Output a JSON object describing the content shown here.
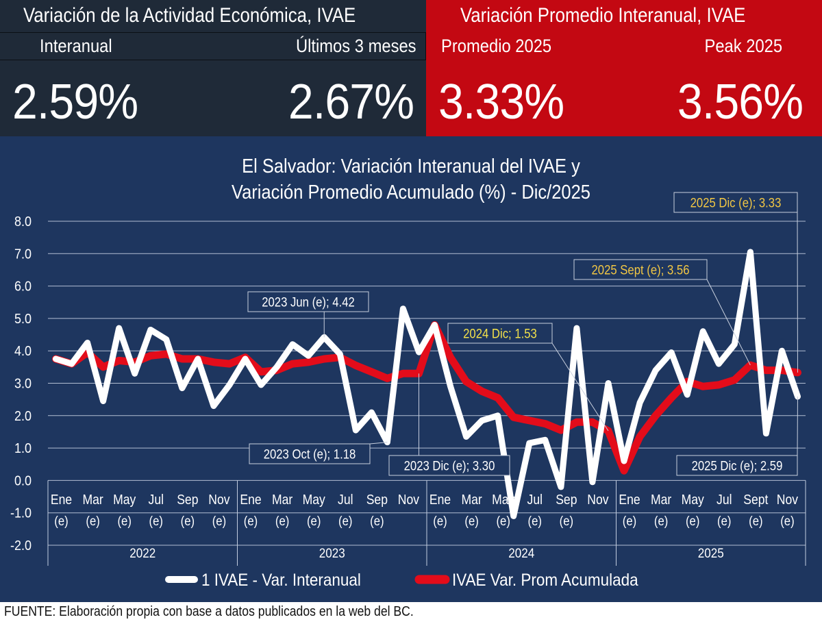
{
  "header": {
    "left_title": "Variación de la Actividad Económica, IVAE",
    "right_title": "Variación Promedio Interanual, IVAE",
    "kpis": [
      {
        "label": "Interanual",
        "value": "2.59%"
      },
      {
        "label": "Últimos 3 meses",
        "value": "2.67%"
      },
      {
        "label": "Promedio 2025",
        "value": "3.33%"
      },
      {
        "label": "Peak 2025",
        "value": "3.56%"
      }
    ]
  },
  "colors": {
    "dark_panel": "#1f2a38",
    "red_panel": "#c30812",
    "chart_background": "#1e365f",
    "series_interanual": "#ffffff",
    "series_promedio": "#e30c1a",
    "annotation_text_yellow": "#f2c744"
  },
  "chart_data": {
    "type": "line",
    "title": "El Salvador: Variación Interanual del IVAE y",
    "subtitle": "Variación Promedio Acumulado (%) - Dic/2025",
    "ylim": [
      -2.0,
      8.0
    ],
    "yticks": [
      "8.0",
      "7.0",
      "6.0",
      "5.0",
      "4.0",
      "3.0",
      "2.0",
      "1.0",
      "0.0",
      "-1.0",
      "-2.0"
    ],
    "grid": true,
    "legend_position": "bottom",
    "years": [
      "2022",
      "2023",
      "2024",
      "2025"
    ],
    "month_labels": [
      "Ene",
      "Mar",
      "May",
      "Jul",
      "Sep",
      "Nov",
      "Ene",
      "Mar",
      "May",
      "Jul",
      "Sep",
      "Nov",
      "Ene",
      "Mar",
      "May",
      "Jul",
      "Sep",
      "Nov",
      "Ene",
      "Mar",
      "May",
      "Jul",
      "Sept",
      "Nov"
    ],
    "estimate_marks": [
      "(e)",
      "(e)",
      "(e)",
      "(e)",
      "(e)",
      "(e)",
      "(e)",
      "(e)",
      "(e)",
      "(e)",
      "(e)",
      "",
      "(e)",
      "(e)",
      "(e)",
      "(e)",
      "(e)",
      "",
      "(e)",
      "(e)",
      "(e)",
      "(e)",
      "(e)",
      "(e)"
    ],
    "series": [
      {
        "name": "IVAE - Var. Interanual",
        "legend_label": "1   IVAE - Var. Interanual",
        "color": "#ffffff",
        "values": [
          3.75,
          3.6,
          4.25,
          2.45,
          4.7,
          3.3,
          4.65,
          4.35,
          2.85,
          3.75,
          2.3,
          2.95,
          3.75,
          2.95,
          3.5,
          4.2,
          3.85,
          4.42,
          3.9,
          1.55,
          2.1,
          1.18,
          5.3,
          3.96,
          4.8,
          2.9,
          1.35,
          1.85,
          2.0,
          -1.1,
          1.15,
          1.25,
          -0.2,
          4.7,
          -0.05,
          3.0,
          0.6,
          2.4,
          3.4,
          3.95,
          2.65,
          4.6,
          3.6,
          4.2,
          7.05,
          1.45,
          4.0,
          2.59
        ]
      },
      {
        "name": "IVAE Var. Prom Acumulada",
        "legend_label": "IVAE Var. Prom Acumulada",
        "color": "#e30c1a",
        "values": [
          3.75,
          3.6,
          3.95,
          3.5,
          3.7,
          3.65,
          3.85,
          3.9,
          3.75,
          3.75,
          3.65,
          3.6,
          3.8,
          3.35,
          3.4,
          3.6,
          3.65,
          3.75,
          3.8,
          3.55,
          3.35,
          3.15,
          3.3,
          3.3,
          4.8,
          3.8,
          3.05,
          2.75,
          2.55,
          1.95,
          1.85,
          1.75,
          1.55,
          1.8,
          1.8,
          1.53,
          0.3,
          1.35,
          2.0,
          2.55,
          3.05,
          2.9,
          2.95,
          3.1,
          3.56,
          3.4,
          3.4,
          3.33
        ]
      }
    ],
    "annotations": [
      {
        "text": "2023 Jun (e); 4.42",
        "index": 17,
        "series": 0,
        "style": "light"
      },
      {
        "text": "2023 Oct (e); 1.18",
        "index": 21,
        "series": 0,
        "style": "light"
      },
      {
        "text": "2023 Dic (e);  3.30",
        "index": 23,
        "series": 1,
        "style": "light"
      },
      {
        "text": "2024 Dic;  1.53",
        "index": 35,
        "series": 1,
        "style": "yellow"
      },
      {
        "text": "2025 Sept (e);  3.56",
        "index": 44,
        "series": 1,
        "style": "orange"
      },
      {
        "text": "2025 Dic (e);  3.33",
        "index": 47,
        "series": 1,
        "style": "orange"
      },
      {
        "text": "2025 Dic (e); 2.59",
        "index": 47,
        "series": 0,
        "style": "light"
      }
    ]
  },
  "footer": {
    "source": "FUENTE:   Elaboración propia con base a datos publicados en la web del BC."
  }
}
